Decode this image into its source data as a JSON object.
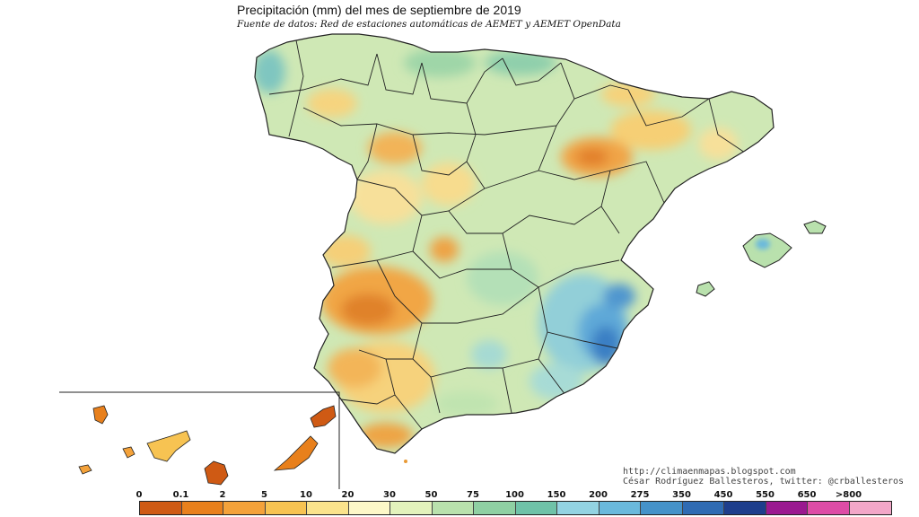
{
  "map": {
    "title": "Precipitación (mm) del mes de septiembre  de 2019",
    "subtitle": "Fuente de datos: Red de estaciones automáticas de AEMET y AEMET OpenData",
    "credits": {
      "blog": "http://climaenmapas.blogspot.com",
      "author": "César Rodríguez Ballesteros, twitter: @crballesteros"
    },
    "legend": {
      "labels": [
        "0",
        "0.1",
        "2",
        "5",
        "10",
        "20",
        "30",
        "50",
        "75",
        "100",
        "150",
        "200",
        "275",
        "350",
        "450",
        "550",
        "650",
        ">800"
      ],
      "colors": [
        "#cf5a14",
        "#e8801c",
        "#f4a23a",
        "#f7c352",
        "#fae38c",
        "#fdf8c8",
        "#e3f2bc",
        "#b9e1ad",
        "#8fd0a3",
        "#6fc2a8",
        "#93d3e2",
        "#6ab9dc",
        "#4592c9",
        "#2f6bb3",
        "#1e3e8c",
        "#9a1990",
        "#dd4ca6",
        "#f2a7c8"
      ]
    },
    "colors": {
      "dry": "#e99a35",
      "moderate": "#b9e1ad",
      "wet": "#4592c9",
      "very_wet": "#1e3e8c",
      "border": "#222222"
    }
  }
}
